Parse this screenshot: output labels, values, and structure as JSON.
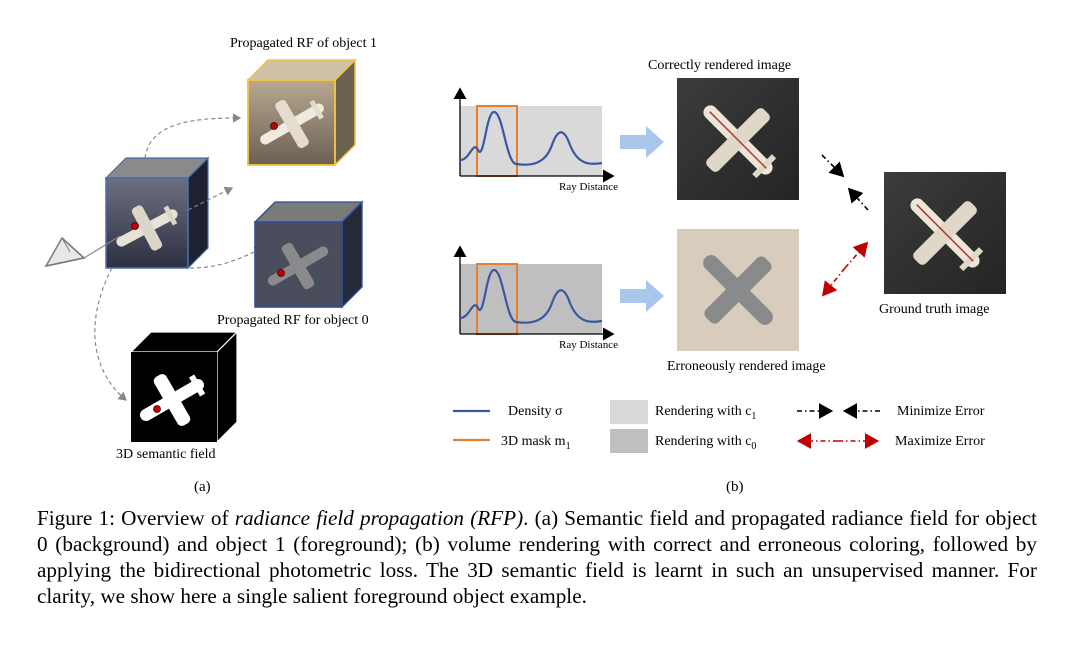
{
  "panel_a": {
    "label_rf_object1": "Propagated RF of object 1",
    "label_rf_object0": "Propagated RF for object 0",
    "label_semantic_field": "3D semantic field",
    "subfigure_label": "(a)"
  },
  "panel_b": {
    "axis_label_top": "Ray Distance",
    "axis_label_bottom": "Ray Distance",
    "label_correct": "Correctly rendered image",
    "label_erroneous": "Erroneously rendered image",
    "label_ground_truth": "Ground truth image",
    "subfigure_label": "(b)",
    "legend": {
      "density": "Density σ",
      "mask": "3D mask m",
      "mask_sub": "1",
      "render_c1": "Rendering with c",
      "render_c1_sub": "1",
      "render_c0": "Rendering with c",
      "render_c0_sub": "0",
      "minimize": "Minimize Error",
      "maximize": "Maximize Error"
    }
  },
  "caption": {
    "prefix": "Figure 1: Overview of ",
    "italic": "radiance field propagation (RFP)",
    "rest": ". (a) Semantic field and propagated radiance field for object 0 (background) and object 1 (foreground); (b) volume rendering with correct and erroneous coloring, followed by applying the bidirectional photometric loss. The 3D semantic field is learnt in such an unsupervised manner. For clarity, we show here a single salient foreground object example."
  },
  "colors": {
    "density_curve": "#3a57a4",
    "mask_box": "#e67e30",
    "render_c1_fill": "#d9d9d9",
    "render_c0_fill": "#bfbfbf",
    "arrow_flow": "#a9c7ea",
    "minimize_arrow": "#000000",
    "maximize_arrow": "#c00000",
    "cube_object1_edge": "#f0c543",
    "cube_object0_edge": "#2f4f9a"
  }
}
